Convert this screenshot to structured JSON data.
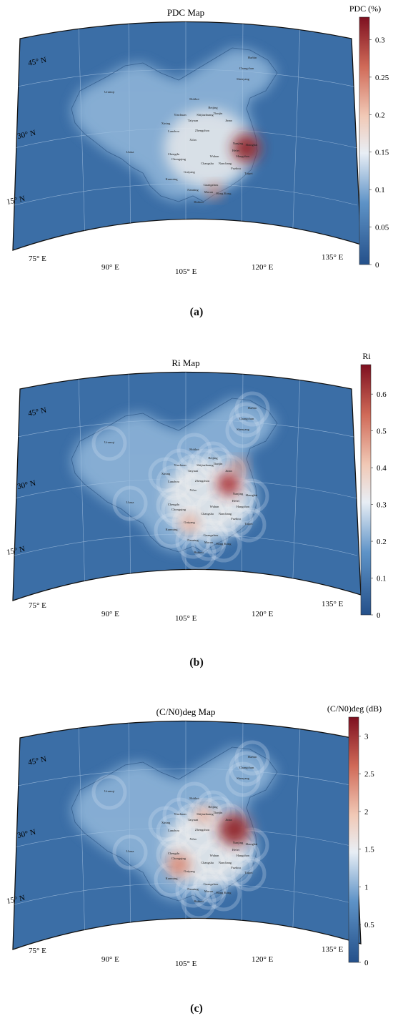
{
  "figures": [
    {
      "id": "a",
      "title": "PDC Map",
      "colorbar_label": "PDC (%)",
      "colorbar_ticks": [
        "0.3",
        "0.25",
        "0.2",
        "0.15",
        "0.1",
        "0.05",
        "0"
      ],
      "colorbar_range": [
        0,
        0.33
      ],
      "caption": "(a)",
      "hotspot": "Shanghai"
    },
    {
      "id": "b",
      "title": "Ri Map",
      "colorbar_label": "Ri",
      "colorbar_ticks": [
        "0.6",
        "0.5",
        "0.4",
        "0.3",
        "0.2",
        "0.1",
        "0"
      ],
      "colorbar_range": [
        0,
        0.68
      ],
      "caption": "(b)",
      "hotspot": "Hefei"
    },
    {
      "id": "c",
      "title": "(C/N0)deg Map",
      "colorbar_label": "(C/N0)deg (dB)",
      "colorbar_ticks": [
        "3",
        "2.5",
        "2",
        "1.5",
        "1",
        "0.5",
        "0"
      ],
      "colorbar_range": [
        0,
        3.25
      ],
      "caption": "(c)",
      "hotspot": "Hangzhou"
    }
  ],
  "lat_labels": [
    "45° N",
    "30° N",
    "15° N"
  ],
  "lon_labels": [
    "75° E",
    "90° E",
    "105° E",
    "120° E",
    "135° E"
  ],
  "cities": [
    "Harbin",
    "Changchun",
    "Shenyang",
    "Urumqi",
    "Hohhot",
    "Beijing",
    "Tianjin",
    "Shijiazhuang",
    "Taiyuan",
    "Jinan",
    "Yinchuan",
    "Xining",
    "Lanzhou",
    "Zhengzhou",
    "Xi'an",
    "Nanjing",
    "Shanghai",
    "Hefei",
    "Hangzhou",
    "Wuhan",
    "Lhasa",
    "Chengdu",
    "Chongqing",
    "Changsha",
    "Nanchang",
    "Fuzhou",
    "Taipei",
    "Guiyang",
    "Kunming",
    "Nanning",
    "Guangzhou",
    "Macau",
    "Hong Kong",
    "Haikou"
  ],
  "colors": {
    "ocean": "#3b6ea6",
    "low": "#2c5f98",
    "mid": "#f3f3f3",
    "high": "#8e1a21"
  }
}
